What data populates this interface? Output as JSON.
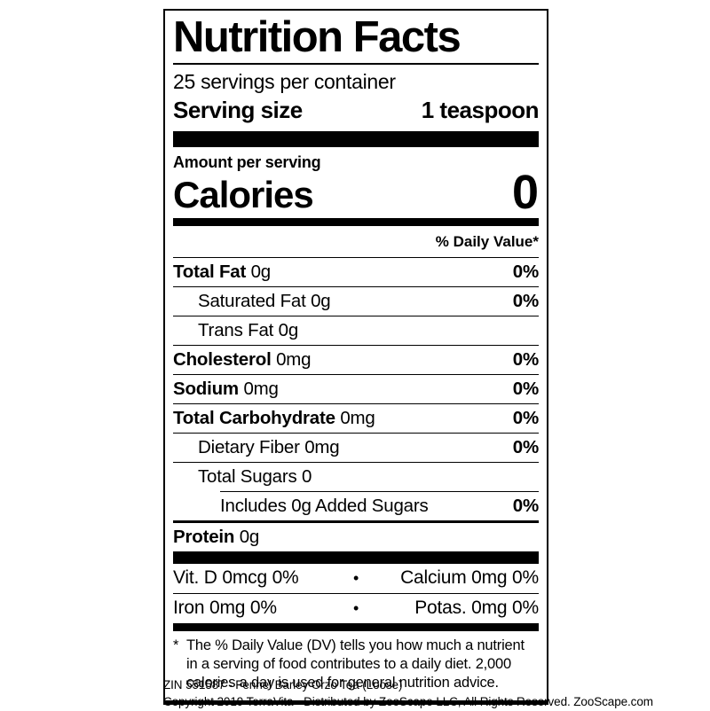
{
  "label": {
    "title": "Nutrition Facts",
    "servings_per_container": "25 servings per container",
    "serving_size_label": "Serving size",
    "serving_size_value": "1 teaspoon",
    "amount_per_serving": "Amount per serving",
    "calories_label": "Calories",
    "calories_value": "0",
    "daily_value_header": "% Daily Value*",
    "rows": [
      {
        "bold": "Total Fat",
        "rest": " 0g",
        "dv": "0%"
      },
      {
        "bold": "",
        "rest": "Saturated Fat 0g",
        "dv": "0%"
      },
      {
        "bold": "",
        "rest": "Trans Fat 0g",
        "dv": ""
      },
      {
        "bold": "Cholesterol",
        "rest": " 0mg",
        "dv": "0%"
      },
      {
        "bold": "Sodium",
        "rest": " 0mg",
        "dv": "0%"
      },
      {
        "bold": "Total Carbohydrate",
        "rest": " 0mg",
        "dv": "0%"
      },
      {
        "bold": "",
        "rest": "Dietary Fiber 0mg",
        "dv": "0%"
      },
      {
        "bold": "",
        "rest": "Total Sugars 0",
        "dv": ""
      },
      {
        "bold": "",
        "rest": "Includes 0g Added Sugars",
        "dv": "0%"
      },
      {
        "bold": "Protein",
        "rest": " 0g",
        "dv": ""
      }
    ],
    "vitamins": [
      {
        "left": "Vit. D 0mcg 0%",
        "right": "Calcium 0mg 0%"
      },
      {
        "left": "Iron 0mg 0%",
        "right": "Potas. 0mg 0%"
      }
    ],
    "bullet": "•",
    "footnote_marker": "*",
    "footnote": "The % Daily Value (DV) tells you how much a nutrient in a serving of food contributes to a daily diet. 2,000 calories a day is used for general nutrition advice."
  },
  "footer": {
    "line1": "ZIN 551587 - Fennel Barley Orzo Tea (Loose)",
    "line2": "Copyright 2019 TerraVita - Distributed by ZooScape LLC, All Rights Reserved. ZooScape.com"
  },
  "colors": {
    "ink": "#000000",
    "background": "#ffffff"
  }
}
